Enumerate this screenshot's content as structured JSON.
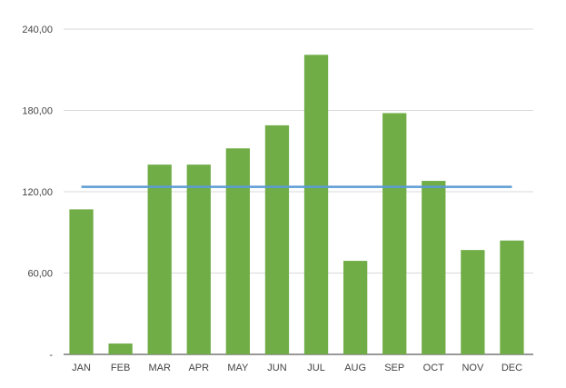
{
  "chart_data": {
    "type": "bar",
    "categories": [
      "JAN",
      "FEB",
      "MAR",
      "APR",
      "MAY",
      "JUN",
      "JUL",
      "AUG",
      "SEP",
      "OCT",
      "NOV",
      "DEC"
    ],
    "series": [
      {
        "type": "bar",
        "values": [
          107,
          8,
          140,
          140,
          152,
          169,
          221,
          69,
          178,
          128,
          77,
          84
        ],
        "color": "#70ad47"
      },
      {
        "type": "line",
        "values": [
          123.6,
          123.6,
          123.6,
          123.6,
          123.6,
          123.6,
          123.6,
          123.6,
          123.6,
          123.6,
          123.6,
          123.6
        ],
        "color": "#5b9bd5"
      }
    ],
    "yticks": [
      0,
      60,
      120,
      180,
      240
    ],
    "ytick_labels": [
      "-",
      "60,00",
      "120,00",
      "180,00",
      "240,00"
    ],
    "ylim": [
      0,
      240
    ],
    "grid": true,
    "legend": "none"
  }
}
